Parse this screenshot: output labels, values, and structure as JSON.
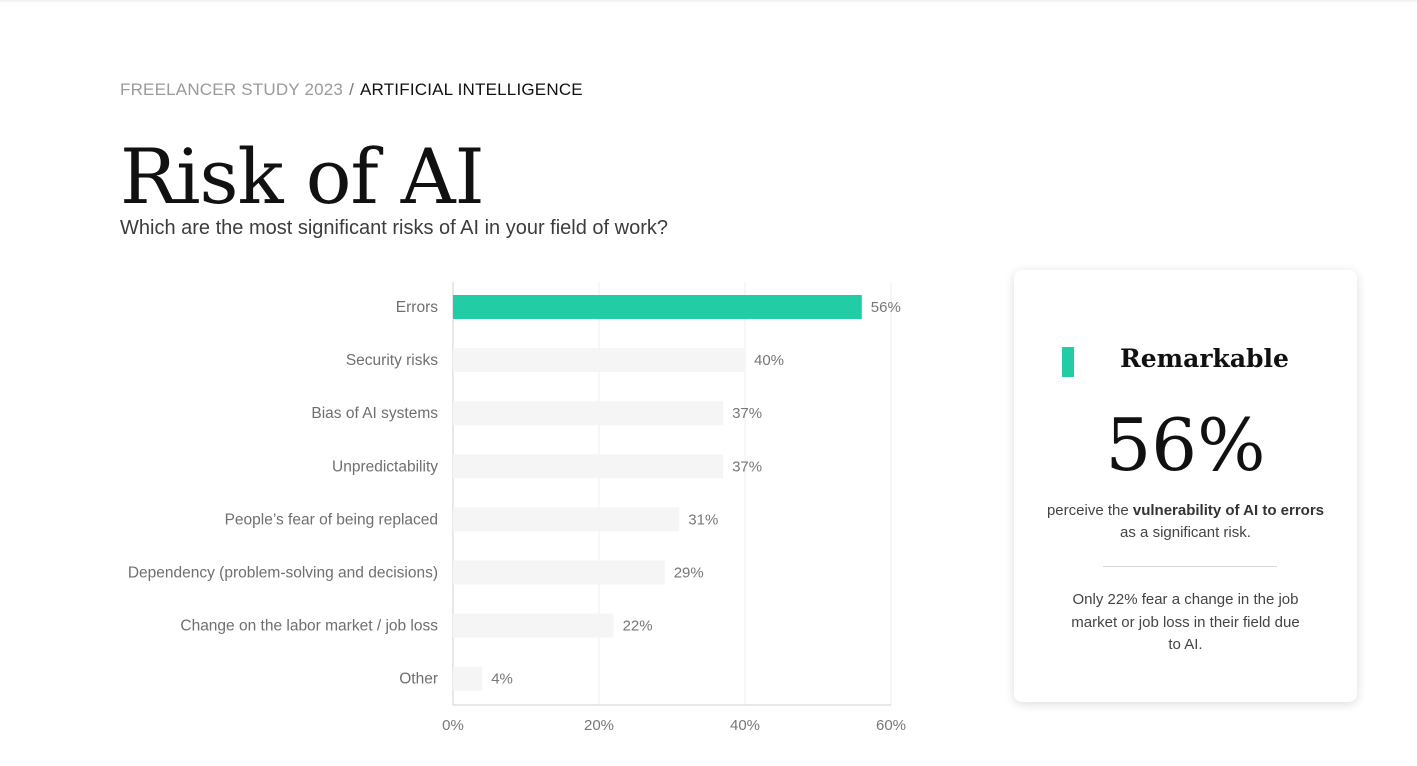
{
  "breadcrumb": {
    "parent": "FREELANCER STUDY 2023",
    "separator": "/",
    "current": "ARTIFICIAL INTELLIGENCE"
  },
  "page": {
    "title": "Risk of AI",
    "subtitle": "Which are the most significant risks of AI in your field of work?"
  },
  "chart_data": {
    "type": "bar",
    "orientation": "horizontal",
    "categories": [
      "Errors",
      "Security risks",
      "Bias of AI systems",
      "Unpredictability",
      "People’s fear of being replaced",
      "Dependency (problem-solving and decisions)",
      "Change on the labor market / job loss",
      "Other"
    ],
    "values": [
      56,
      40,
      37,
      37,
      31,
      29,
      22,
      4
    ],
    "value_labels": [
      "56%",
      "40%",
      "37%",
      "37%",
      "31%",
      "29%",
      "22%",
      "4%"
    ],
    "xlim": [
      0,
      60
    ],
    "x_ticks": [
      0,
      20,
      40,
      60
    ],
    "x_tick_labels": [
      "0%",
      "20%",
      "40%",
      "60%"
    ],
    "grid": true,
    "highlight_index": 0,
    "colors": {
      "highlight": "#22cca5",
      "bar": "#f5f5f5",
      "grid": "#efefef",
      "axis": "#d0d0d0"
    }
  },
  "card": {
    "heading": "Remarkable",
    "big_value": "56%",
    "text_before": "perceive the ",
    "text_bold": "vulnerability of AI to errors",
    "text_after": " as a significant risk.",
    "note": "Only 22% fear a change in the job market or job loss in their field due to AI.",
    "accent_color": "#22cca5"
  }
}
